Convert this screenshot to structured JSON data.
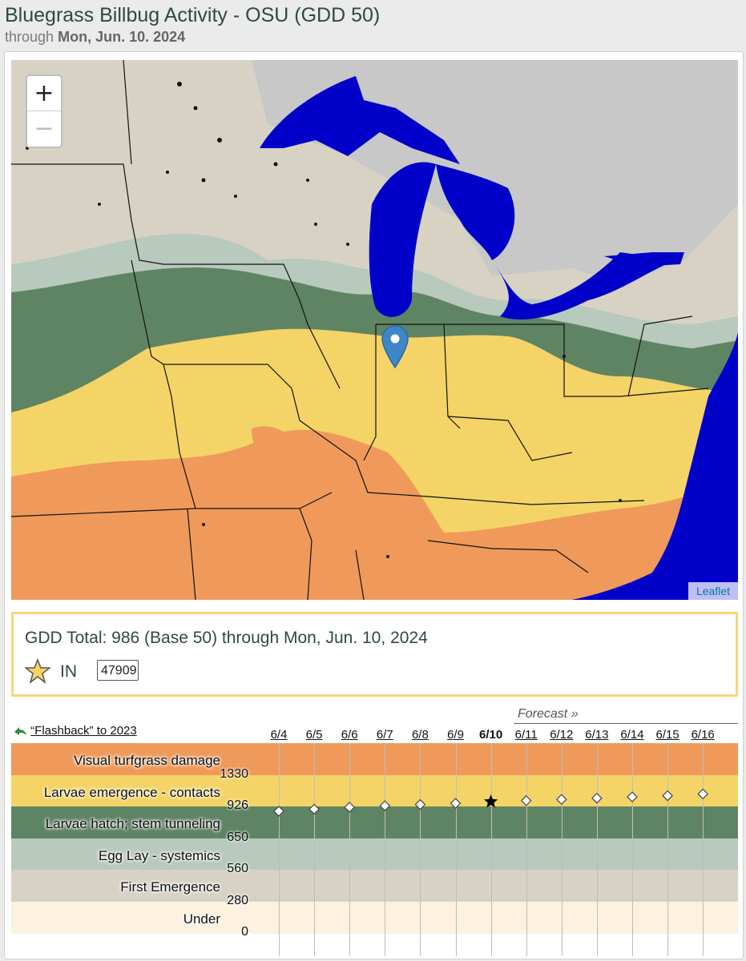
{
  "header": {
    "title": "Bluegrass Billbug Activity - OSU (GDD 50)",
    "subtitle_prefix": "through",
    "subtitle_date": "Mon, Jun. 10. 2024"
  },
  "map": {
    "zoom_in": "+",
    "zoom_out": "−",
    "attribution": "Leaflet",
    "marker_icon": "map-pin-icon",
    "zone_colors": {
      "orange": "#ef9a5b",
      "yellow": "#f4d466",
      "dark_green": "#5f8464",
      "light_green": "#b8c9bd",
      "tan": "#d8d2c5",
      "cream": "#fdf1df",
      "water": "#0000c8",
      "outside": "#c8c8c8"
    }
  },
  "gdd_box": {
    "total_text": "GDD Total: 986 (Base 50) through Mon, Jun. 10, 2024",
    "favorite_icon": "star-icon",
    "state": "IN",
    "zip_value": "47909"
  },
  "chart": {
    "flashback_icon": "back-arrow-icon",
    "flashback_label": "“Flashback” to 2023",
    "forecast_label": "Forecast »",
    "current_date": "6/10"
  },
  "chart_data": {
    "type": "scatter",
    "x": [
      "6/4",
      "6/5",
      "6/6",
      "6/7",
      "6/8",
      "6/9",
      "6/10",
      "6/11",
      "6/12",
      "6/13",
      "6/14",
      "6/15",
      "6/16"
    ],
    "values": [
      884,
      902,
      919,
      935,
      950,
      965,
      986,
      1000,
      1016,
      1031,
      1048,
      1063,
      1085
    ],
    "current_index": 6,
    "forecast_start_index": 7,
    "ylim": [
      0,
      1730
    ],
    "thresholds": [
      "1330",
      "926",
      "650",
      "560",
      "280",
      "0"
    ],
    "bands": [
      {
        "label": "Visual turfgrass damage",
        "color": "#ef9a5b"
      },
      {
        "label": "Larvae emergence - contacts",
        "color": "#f4d466"
      },
      {
        "label": "Larvae hatch; stem tunneling",
        "color": "#5f8464"
      },
      {
        "label": "Egg Lay - systemics",
        "color": "#b8c9bd"
      },
      {
        "label": "First Emergence",
        "color": "#d8d2c5"
      },
      {
        "label": "Under",
        "color": "#fdf1df"
      }
    ]
  }
}
